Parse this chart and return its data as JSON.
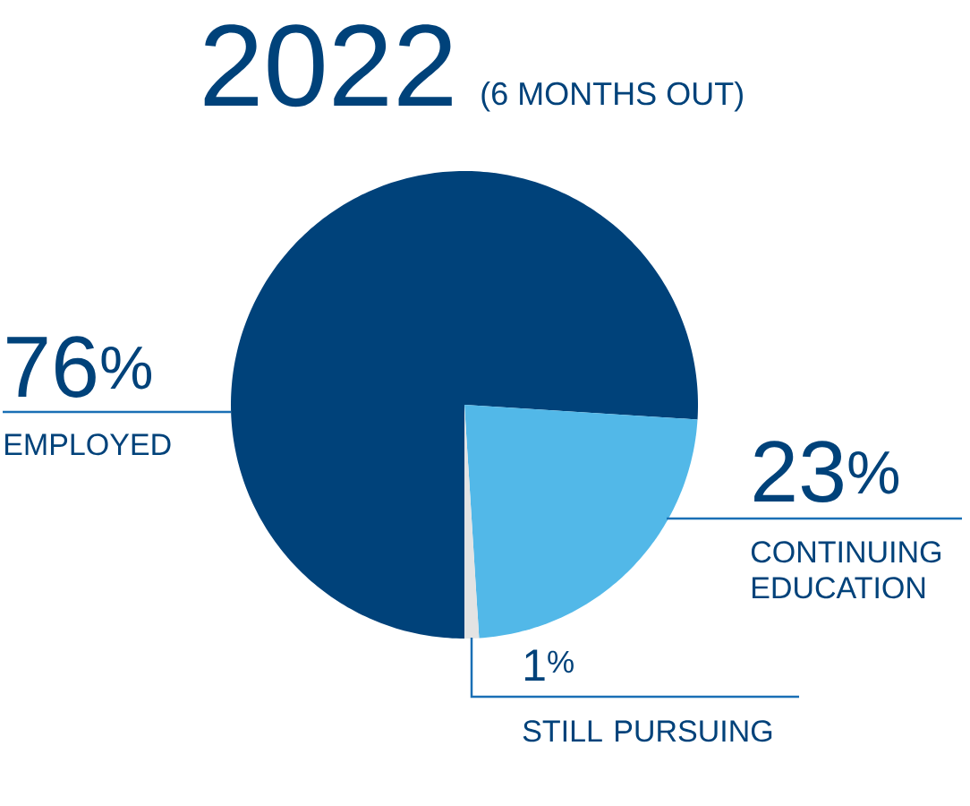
{
  "chart_data": {
    "type": "pie",
    "title": "2022",
    "subtitle": "(6 MONTHS OUT)",
    "categories": [
      "EMPLOYED",
      "CONTINUING EDUCATION",
      "STILL PURSUING"
    ],
    "values": [
      76,
      23,
      1
    ],
    "colors": [
      "#00427a",
      "#52b8e8",
      "#e3e3e3"
    ],
    "value_labels": [
      "76$^{%}$",
      "23$^{%}$",
      "1$^{%}$"
    ]
  }
}
